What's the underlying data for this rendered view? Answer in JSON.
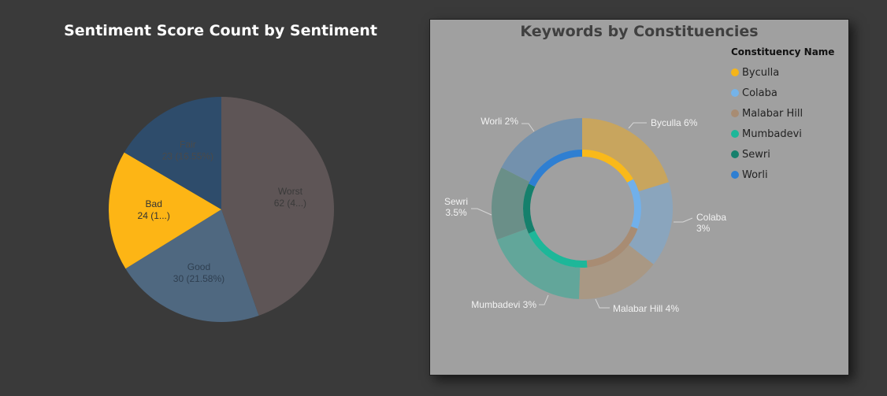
{
  "left_chart": {
    "title": "Sentiment Score Count by Sentiment"
  },
  "right_chart": {
    "title": "Keywords by Constituencies",
    "legend_title": "Constituency Name",
    "legend": [
      {
        "label": "Byculla",
        "color": "#f5b51a"
      },
      {
        "label": "Colaba",
        "color": "#75b3e8"
      },
      {
        "label": "Malabar Hill",
        "color": "#a88c73"
      },
      {
        "label": "Mumbadevi",
        "color": "#1db799"
      },
      {
        "label": "Sewri",
        "color": "#15806c"
      },
      {
        "label": "Worli",
        "color": "#2f7fd2"
      }
    ]
  },
  "chart_data": [
    {
      "type": "pie",
      "title": "Sentiment Score Count by Sentiment",
      "slices": [
        {
          "label": "Worst",
          "value": 62,
          "display": "62 (4...)",
          "color": "#5e5556",
          "text_color": "#3a3a3a"
        },
        {
          "label": "Good",
          "value": 30,
          "display": "30 (21.58%)",
          "color": "#4f6880",
          "text_color": "#2f3f50"
        },
        {
          "label": "Bad",
          "value": 24,
          "display": "24 (1...)",
          "color": "#fdb515",
          "text_color": "#333333"
        },
        {
          "label": "Fair",
          "value": 23,
          "display": "23 (16.55%)",
          "color": "#2e4c6b",
          "text_color": "#4a4a4a"
        }
      ]
    },
    {
      "type": "pie",
      "subtype": "double-donut",
      "title": "Keywords by Constituencies",
      "outer_ring": [
        {
          "label": "Byculla",
          "display": "Byculla 6%",
          "value": 6,
          "color": "#c8a55e"
        },
        {
          "label": "Colaba",
          "display": "Colaba 3%",
          "value": 3,
          "color": "#8aa5bd"
        },
        {
          "label": "Malabar Hill",
          "display": "Malabar Hill 4%",
          "value": 4,
          "color": "#a99884"
        },
        {
          "label": "Mumbadevi",
          "display": "Mumbadevi 3%",
          "value": 3,
          "color": "#62a69a"
        },
        {
          "label": "Sewri",
          "display": "Sewri 3.5%",
          "value": 3.5,
          "color": "#6a8f88"
        },
        {
          "label": "Worli",
          "display": "Worli 2%",
          "value": 2,
          "color": "#7391ad"
        }
      ],
      "outer_ring_angles": [
        0,
        73,
        128,
        182,
        250,
        297,
        360
      ],
      "inner_ring": [
        {
          "label": "Byculla",
          "color": "#f9b91a"
        },
        {
          "label": "Colaba",
          "color": "#71b0ea"
        },
        {
          "label": "Malabar Hill",
          "color": "#a88c73"
        },
        {
          "label": "Mumbadevi",
          "color": "#1db799"
        },
        {
          "label": "Sewri",
          "color": "#15806c"
        },
        {
          "label": "Worli",
          "color": "#2f7fd2"
        }
      ],
      "inner_ring_angles": [
        0,
        60,
        110,
        175,
        245,
        295,
        360
      ]
    }
  ]
}
